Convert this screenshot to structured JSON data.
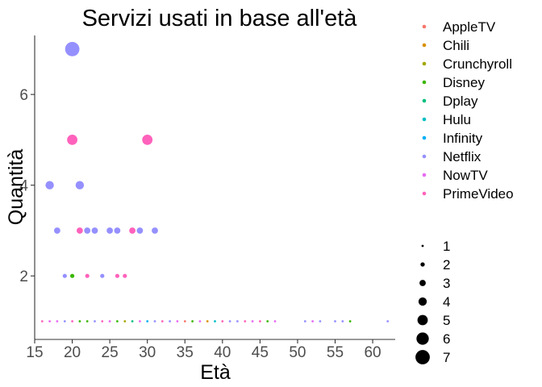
{
  "chart_data": {
    "type": "scatter",
    "title": "Servizi usati in base all'età",
    "xlabel": "Età",
    "ylabel": "Quantità",
    "xlim": [
      15,
      63
    ],
    "ylim": [
      0.6,
      7.3
    ],
    "xticks": [
      15,
      20,
      25,
      30,
      35,
      40,
      45,
      50,
      55,
      60
    ],
    "yticks": [
      2,
      4,
      6
    ],
    "grid": false,
    "legend_position": "right",
    "size_legend": [
      1,
      2,
      3,
      4,
      5,
      6,
      7
    ],
    "colors": {
      "AppleTV": "#F8766D",
      "Chili": "#D89000",
      "Crunchyroll": "#A3A500",
      "Disney": "#39B600",
      "Dplay": "#00BF7D",
      "Hulu": "#00BFC4",
      "Infinity": "#00B0F6",
      "Netflix": "#9590FF",
      "NowTV": "#E76BF3",
      "PrimeVideo": "#FF62BC"
    },
    "series": [
      {
        "name": "AppleTV",
        "points": [
          [
            35,
            1,
            1
          ]
        ]
      },
      {
        "name": "Chili",
        "points": [
          [
            38,
            1,
            1
          ]
        ]
      },
      {
        "name": "Crunchyroll",
        "points": [
          [
            27,
            1,
            1
          ]
        ]
      },
      {
        "name": "Disney",
        "points": [
          [
            20,
            2,
            2
          ],
          [
            21,
            1,
            1
          ],
          [
            22,
            1,
            1
          ],
          [
            26,
            1,
            1
          ],
          [
            36,
            1,
            1
          ],
          [
            46,
            1,
            1
          ],
          [
            57,
            1,
            1
          ]
        ]
      },
      {
        "name": "Dplay",
        "points": [
          [
            28,
            1,
            1
          ]
        ]
      },
      {
        "name": "Hulu",
        "points": [
          [
            39,
            1,
            1
          ]
        ]
      },
      {
        "name": "Infinity",
        "points": [
          [
            30,
            1,
            1
          ]
        ]
      },
      {
        "name": "Netflix",
        "points": [
          [
            17,
            4,
            4
          ],
          [
            18,
            3,
            3
          ],
          [
            19,
            2,
            2
          ],
          [
            20,
            7,
            7
          ],
          [
            21,
            4,
            4
          ],
          [
            22,
            3,
            3
          ],
          [
            23,
            3,
            3
          ],
          [
            24,
            2,
            2
          ],
          [
            25,
            3,
            3
          ],
          [
            26,
            3,
            3
          ],
          [
            29,
            3,
            3
          ],
          [
            31,
            3,
            3
          ],
          [
            19,
            1,
            1
          ],
          [
            23,
            1,
            1
          ],
          [
            31,
            1,
            1
          ],
          [
            33,
            1,
            1
          ],
          [
            41,
            1,
            1
          ],
          [
            42,
            1,
            1
          ],
          [
            51,
            1,
            1
          ],
          [
            53,
            1,
            1
          ],
          [
            55,
            1,
            1
          ],
          [
            56,
            1,
            1
          ],
          [
            62,
            1,
            1
          ]
        ]
      },
      {
        "name": "NowTV",
        "points": [
          [
            17,
            1,
            1
          ],
          [
            18,
            1,
            1
          ],
          [
            25,
            1,
            1
          ],
          [
            29,
            1,
            1
          ],
          [
            34,
            1,
            1
          ],
          [
            37,
            1,
            1
          ],
          [
            44,
            1,
            1
          ],
          [
            47,
            1,
            1
          ],
          [
            52,
            1,
            1
          ]
        ]
      },
      {
        "name": "PrimeVideo",
        "points": [
          [
            20,
            5,
            5
          ],
          [
            30,
            5,
            5
          ],
          [
            21,
            3,
            3
          ],
          [
            28,
            3,
            3
          ],
          [
            22,
            2,
            2
          ],
          [
            26,
            2,
            2
          ],
          [
            27,
            2,
            2
          ],
          [
            16,
            1,
            1
          ],
          [
            20,
            1,
            1
          ],
          [
            24,
            1,
            1
          ],
          [
            32,
            1,
            1
          ],
          [
            40,
            1,
            1
          ],
          [
            43,
            1,
            1
          ],
          [
            45,
            1,
            1
          ]
        ]
      }
    ]
  }
}
